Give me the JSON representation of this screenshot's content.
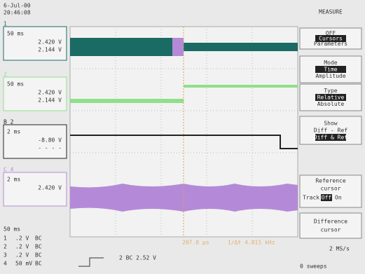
{
  "header": {
    "date": "6-Jul-00",
    "time": "20:46:08",
    "title": "MEASURE"
  },
  "channels": [
    {
      "label": "1",
      "timebase": "50 ms",
      "lines": [
        "2.420 V",
        "2.144 V"
      ]
    },
    {
      "label": "2",
      "timebase": "50 ms",
      "lines": [
        "2.420 V",
        "2.144 V"
      ]
    },
    {
      "label": "B 2",
      "timebase": "2 ms",
      "lines": [
        "-8.80 V",
        "- - - -"
      ]
    },
    {
      "label": "C 4",
      "timebase": "2 ms",
      "lines": [
        "2.420 V"
      ]
    }
  ],
  "menu": [
    {
      "lines": [
        "OFF",
        "Cursors",
        "Parameters"
      ]
    },
    {
      "lines": [
        "Mode",
        "Time",
        "Amplitude"
      ]
    },
    {
      "lines": [
        "Type",
        "Relative",
        "Absolute"
      ]
    },
    {
      "lines": [
        "Show",
        "Diff - Ref",
        "Diff & Ref"
      ]
    },
    {
      "lines": [
        "Reference",
        "cursor",
        "Track",
        "Off",
        "On"
      ]
    },
    {
      "lines": [
        "Difference",
        "cursor"
      ]
    }
  ],
  "footer": {
    "timebase": "50 ms",
    "rows": [
      [
        "1",
        ".2 V",
        "BC"
      ],
      [
        "2",
        ".2 V",
        "BC"
      ],
      [
        "3",
        ".2 V",
        "BC"
      ],
      [
        "4",
        "50 mV",
        "BC"
      ]
    ],
    "trigger": "2  BC 2.52 V",
    "measurement": [
      "207.8 µs",
      "1/Δt 4.811 kHz"
    ],
    "rate": "2 MS/s",
    "sweeps": "0 sweeps"
  }
}
